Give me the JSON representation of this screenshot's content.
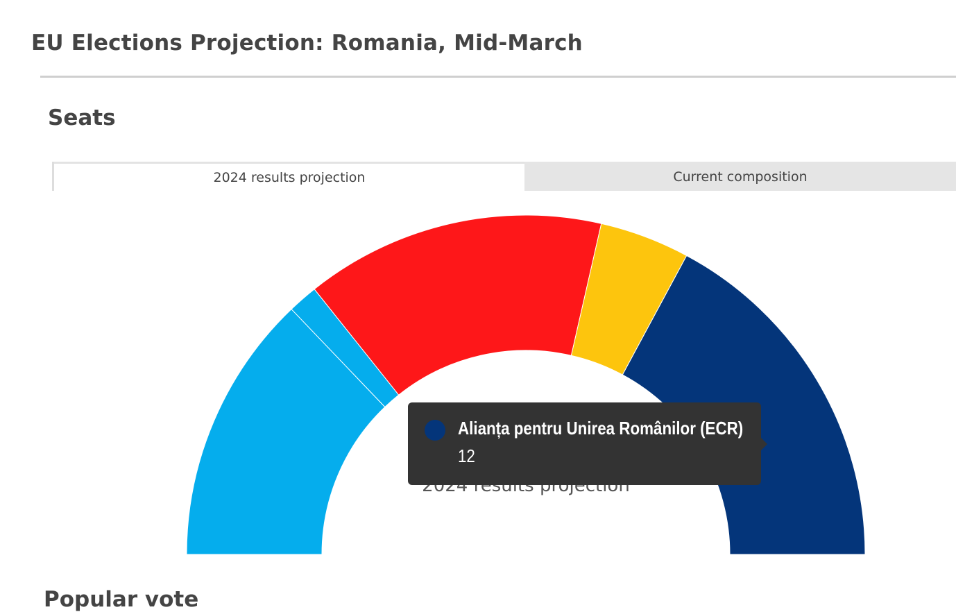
{
  "page": {
    "title": "EU Elections Projection: Romania, Mid-March"
  },
  "seats_section": {
    "title": "Seats"
  },
  "tabs": [
    {
      "label": "2024 results projection",
      "active": true
    },
    {
      "label": "Current composition",
      "active": false
    }
  ],
  "next_section": {
    "title": "Popular vote"
  },
  "tooltip": {
    "party": "Alianța pentru Unirea Românilor (ECR)",
    "value": "12",
    "color": "#04357a"
  },
  "chart_data": {
    "type": "pie",
    "variant": "half-donut",
    "title": "",
    "center_label": "2024 results projection",
    "series": [
      {
        "color": "#05aded",
        "value": 9
      },
      {
        "color": "#05aded",
        "value": 1
      },
      {
        "color": "#fe1719",
        "value": 10
      },
      {
        "color": "#fdc50d",
        "value": 3
      },
      {
        "color": "#04357a",
        "value": 12,
        "name": "Alianța pentru Unirea Românilor (ECR)"
      }
    ],
    "total": 35
  }
}
